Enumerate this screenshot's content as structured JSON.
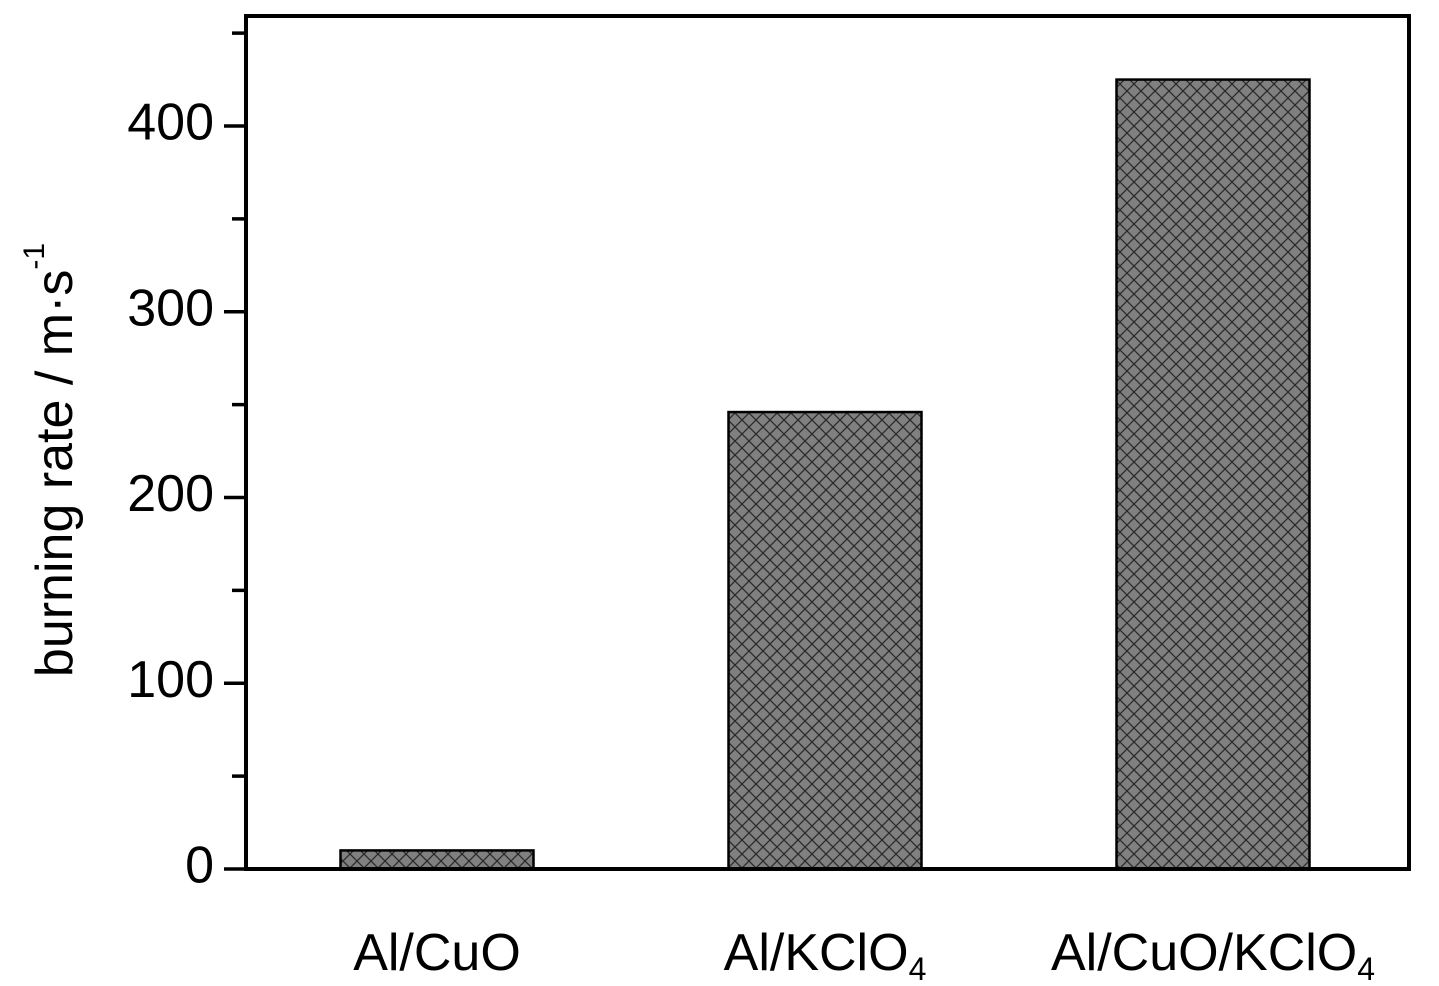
{
  "chart_data": {
    "type": "bar",
    "categories": [
      {
        "label": "Al/CuO",
        "main": "Al/CuO",
        "sub": ""
      },
      {
        "label": "Al/KClO4",
        "main": "Al/KClO",
        "sub": "4"
      },
      {
        "label": "Al/CuO/KClO4",
        "main": "Al/CuO/KClO",
        "sub": "4"
      }
    ],
    "values": [
      10,
      246,
      425
    ],
    "ylabel": {
      "text": "burning rate / m·s",
      "superscript": "-1"
    },
    "xlabel": "",
    "title": "",
    "ylim": [
      0,
      458
    ],
    "yticks": [
      0,
      100,
      200,
      300,
      400
    ],
    "y_minor_step": 50,
    "grid": false,
    "legend": "none",
    "bar_fill": "#808080",
    "bar_hatch": "cross-hatch",
    "hatch_color": "#2a2a2a",
    "axis_color": "#000000"
  }
}
